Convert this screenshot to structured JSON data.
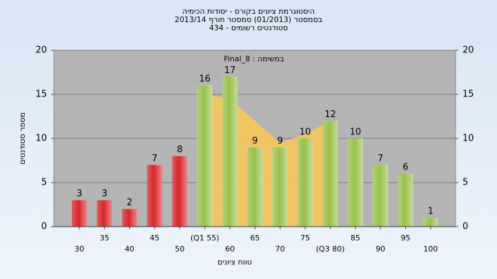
{
  "chart_data": {
    "type": "bar",
    "title": [
      "היסטוגרמת ציונים בקורס - יסודות הכימיה",
      "בסמסטר (01/2013) סמסטר חורף 2013/14",
      "סטודנטים רשומים - 434"
    ],
    "subtitle": "במשימה : Final_8",
    "x_label": "טווח ציונים",
    "y_label": "מספר סטודנטים",
    "categories": [
      "30",
      "35",
      "40",
      "45",
      "50",
      "(Q1 55)",
      "60",
      "65",
      "70",
      "75",
      "(Q3 80)",
      "85",
      "90",
      "95",
      "100"
    ],
    "values": [
      3,
      3,
      2,
      7,
      8,
      16,
      17,
      9,
      9,
      10,
      12,
      10,
      7,
      6,
      1
    ],
    "colors": [
      "#d8262b",
      "#d8262b",
      "#d8262b",
      "#d8262b",
      "#d8262b",
      "#98c04a",
      "#98c04a",
      "#98c04a",
      "#98c04a",
      "#98c04a",
      "#98c04a",
      "#98c04a",
      "#98c04a",
      "#98c04a",
      "#98c04a"
    ],
    "area": {
      "color": "#f7c75a",
      "values": [
        null,
        null,
        null,
        null,
        null,
        15,
        14.5,
        12,
        9.5,
        10.5,
        12,
        null,
        null,
        null,
        null
      ]
    },
    "ylim": [
      0,
      20
    ],
    "yticks": [
      0,
      5,
      10,
      15,
      20
    ],
    "grid": true
  }
}
